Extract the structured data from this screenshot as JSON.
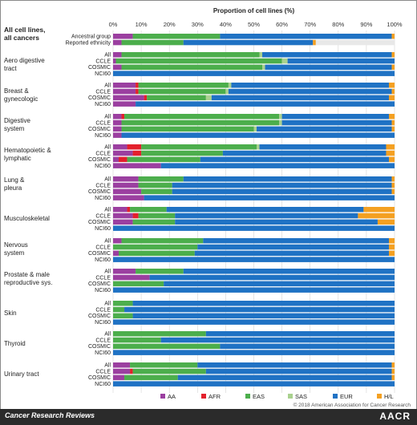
{
  "chart_data": {
    "type": "bar",
    "orientation": "horizontal-stacked",
    "title": "Proportion of cell lines (%)",
    "xlim": [
      0,
      100
    ],
    "x_ticks": [
      "0%",
      "10%",
      "20%",
      "30%",
      "40%",
      "50%",
      "60%",
      "70%",
      "80%",
      "90%",
      "100%"
    ],
    "grid": true,
    "legend_position": "bottom-right",
    "series_names": [
      "AA",
      "AFR",
      "EAS",
      "SAS",
      "EUR",
      "H/L"
    ],
    "colors": {
      "AA": "#9b3fa0",
      "AFR": "#e3202c",
      "EAS": "#4cae4c",
      "SAS": "#a9d18e",
      "EUR": "#1f72c4",
      "H/L": "#f4a021",
      "unknown": "#e8e8e8"
    },
    "groups": [
      {
        "label": "All cell lines, all cancers",
        "bars": [
          {
            "label": "Ancestral group",
            "values": [
              7,
              0,
              31,
              0,
              61,
              1
            ]
          },
          {
            "label": "Reported ethnicity",
            "values": [
              3,
              0,
              22,
              0,
              46,
              1
            ]
          }
        ]
      },
      {
        "label": "Aero digestive tract",
        "bars": [
          {
            "label": "All",
            "values": [
              3,
              0,
              49,
              1,
              46,
              1
            ]
          },
          {
            "label": "CCLE",
            "values": [
              1,
              0,
              59,
              2,
              38,
              0
            ]
          },
          {
            "label": "COSMIC",
            "values": [
              3,
              0,
              50,
              1,
              45,
              1
            ]
          },
          {
            "label": "NCI60",
            "values": [
              0,
              0,
              0,
              0,
              100,
              0
            ]
          }
        ]
      },
      {
        "label": "Breast & gynecologic",
        "bars": [
          {
            "label": "All",
            "values": [
              8,
              1,
              32,
              1,
              56,
              2
            ]
          },
          {
            "label": "CCLE",
            "values": [
              8,
              1,
              31,
              1,
              58,
              1
            ]
          },
          {
            "label": "COSMIC",
            "values": [
              11,
              1,
              21,
              2,
              63,
              2
            ]
          },
          {
            "label": "NCI60",
            "values": [
              8,
              0,
              0,
              0,
              92,
              0
            ]
          }
        ]
      },
      {
        "label": "Digestive system",
        "bars": [
          {
            "label": "All",
            "values": [
              3,
              1,
              55,
              1,
              38,
              2
            ]
          },
          {
            "label": "CCLE",
            "values": [
              3,
              0,
              56,
              1,
              39,
              1
            ]
          },
          {
            "label": "COSMIC",
            "values": [
              3,
              0,
              47,
              1,
              48,
              1
            ]
          },
          {
            "label": "NCI60",
            "values": [
              3,
              0,
              0,
              0,
              97,
              0
            ]
          }
        ]
      },
      {
        "label": "Hematopoietic & lymphatic",
        "bars": [
          {
            "label": "All",
            "values": [
              5,
              5,
              41,
              1,
              45,
              3
            ]
          },
          {
            "label": "CCLE",
            "values": [
              7,
              3,
              29,
              0,
              58,
              3
            ]
          },
          {
            "label": "COSMIC",
            "values": [
              2,
              3,
              26,
              0,
              67,
              2
            ]
          },
          {
            "label": "NCI60",
            "values": [
              17,
              0,
              0,
              0,
              83,
              0
            ]
          }
        ]
      },
      {
        "label": "Lung & pleura",
        "bars": [
          {
            "label": "All",
            "values": [
              9,
              0,
              16,
              0,
              74,
              1
            ]
          },
          {
            "label": "CCLE",
            "values": [
              9,
              0,
              12,
              0,
              78,
              1
            ]
          },
          {
            "label": "COSMIC",
            "values": [
              10,
              0,
              11,
              0,
              78,
              1
            ]
          },
          {
            "label": "NCI60",
            "values": [
              11,
              0,
              0,
              0,
              89,
              0
            ]
          }
        ]
      },
      {
        "label": "Musculoskeletal",
        "bars": [
          {
            "label": "All",
            "values": [
              5,
              1,
              13,
              0,
              70,
              11
            ]
          },
          {
            "label": "CCLE",
            "values": [
              7,
              2,
              13,
              0,
              65,
              13
            ]
          },
          {
            "label": "COSMIC",
            "values": [
              7,
              0,
              15,
              0,
              72,
              6
            ]
          },
          {
            "label": "NCI60",
            "values": [
              0,
              0,
              0,
              0,
              100,
              0
            ]
          }
        ]
      },
      {
        "label": "Nervous system",
        "bars": [
          {
            "label": "All",
            "values": [
              3,
              0,
              29,
              0,
              66,
              2
            ]
          },
          {
            "label": "CCLE",
            "values": [
              0,
              0,
              30,
              0,
              68,
              2
            ]
          },
          {
            "label": "COSMIC",
            "values": [
              2,
              0,
              27,
              0,
              69,
              2
            ]
          },
          {
            "label": "NCI60",
            "values": [
              0,
              0,
              0,
              0,
              100,
              0
            ]
          }
        ]
      },
      {
        "label": "Prostate & male reproductive sys.",
        "bars": [
          {
            "label": "All",
            "values": [
              8,
              0,
              17,
              0,
              75,
              0
            ]
          },
          {
            "label": "CCLE",
            "values": [
              13,
              0,
              0,
              0,
              87,
              0
            ]
          },
          {
            "label": "COSMIC",
            "values": [
              0,
              0,
              18,
              0,
              82,
              0
            ]
          },
          {
            "label": "NCI60",
            "values": [
              0,
              0,
              0,
              0,
              100,
              0
            ]
          }
        ]
      },
      {
        "label": "Skin",
        "bars": [
          {
            "label": "All",
            "values": [
              0,
              0,
              7,
              0,
              93,
              0
            ]
          },
          {
            "label": "CCLE",
            "values": [
              0,
              0,
              4,
              0,
              96,
              0
            ]
          },
          {
            "label": "COSMIC",
            "values": [
              0,
              0,
              7,
              0,
              93,
              0
            ]
          },
          {
            "label": "NCI60",
            "values": [
              0,
              0,
              0,
              0,
              100,
              0
            ]
          }
        ]
      },
      {
        "label": "Thyroid",
        "bars": [
          {
            "label": "All",
            "values": [
              0,
              0,
              33,
              0,
              67,
              0
            ]
          },
          {
            "label": "CCLE",
            "values": [
              0,
              0,
              17,
              0,
              83,
              0
            ]
          },
          {
            "label": "COSMIC",
            "values": [
              0,
              0,
              38,
              0,
              62,
              0
            ]
          },
          {
            "label": "NCI60",
            "values": [
              0,
              0,
              0,
              0,
              100,
              0
            ]
          }
        ]
      },
      {
        "label": "Urinary tract",
        "bars": [
          {
            "label": "All",
            "values": [
              6,
              0,
              24,
              0,
              69,
              1
            ]
          },
          {
            "label": "CCLE",
            "values": [
              6,
              1,
              26,
              0,
              66,
              1
            ]
          },
          {
            "label": "COSMIC",
            "values": [
              4,
              0,
              19,
              0,
              76,
              1
            ]
          },
          {
            "label": "NCI60",
            "values": [
              0,
              0,
              0,
              0,
              100,
              0
            ]
          }
        ]
      }
    ]
  },
  "copyright": "© 2018 American Association for Cancer Research",
  "footer": {
    "journal": "Cancer Research Reviews",
    "logo": "AACR"
  }
}
